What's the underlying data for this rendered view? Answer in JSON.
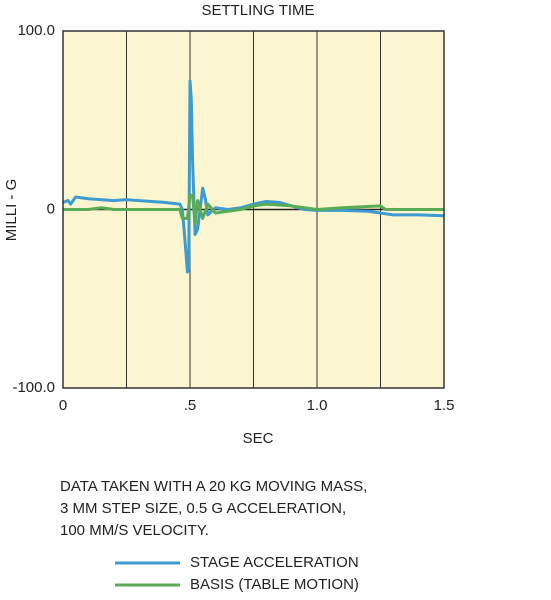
{
  "chart_data": {
    "type": "line",
    "title": "SETTLING TIME",
    "x_label": "SEC",
    "y_label": "MILLI - G",
    "xlim": [
      0,
      1.5
    ],
    "ylim": [
      -100,
      100
    ],
    "xticks": [
      0,
      {
        "value": 0.5,
        "label": ".5"
      },
      {
        "value": 1,
        "label": "1.0"
      },
      1.5
    ],
    "xgrid": [
      0.25,
      0.5,
      0.75,
      1,
      1.25
    ],
    "yticks": [
      {
        "value": 100,
        "label": "100.0"
      },
      0,
      {
        "value": -100,
        "label": "-100.0"
      }
    ],
    "zero_line": true,
    "plot_background": "#fbf6cf",
    "note": [
      "DATA TAKEN WITH A 20 KG MOVING MASS,",
      "3 MM STEP SIZE, 0.5 G ACCELERATION,",
      "100 MM/S VELOCITY."
    ],
    "series": [
      {
        "name": "STAGE ACCELERATION",
        "color": "#3d9bd0",
        "x": [
          0,
          0.02,
          0.03,
          0.05,
          0.1,
          0.2,
          0.25,
          0.3,
          0.4,
          0.46,
          0.47,
          0.48,
          0.49,
          0.495,
          0.5,
          0.505,
          0.51,
          0.52,
          0.53,
          0.55,
          0.56,
          0.57,
          0.6,
          0.65,
          0.7,
          0.75,
          0.8,
          0.85,
          0.9,
          0.95,
          1.0,
          1.1,
          1.2,
          1.25,
          1.3,
          1.4,
          1.5
        ],
        "values": [
          4,
          5,
          3,
          7,
          6,
          5,
          5.5,
          5,
          4,
          3,
          0,
          -17,
          -35,
          -33,
          72,
          62,
          28,
          -14,
          -11,
          12,
          6,
          -3,
          1,
          0,
          1,
          3,
          4.5,
          4,
          2,
          0,
          -0.5,
          -0.5,
          -1,
          -2,
          -3,
          -3,
          -3.5
        ]
      },
      {
        "name": "BASIS (TABLE MOTION)",
        "color": "#5aab55",
        "x": [
          0,
          0.1,
          0.15,
          0.2,
          0.3,
          0.46,
          0.47,
          0.49,
          0.5,
          0.51,
          0.52,
          0.53,
          0.55,
          0.57,
          0.6,
          0.65,
          0.7,
          0.75,
          0.8,
          0.9,
          1.0,
          1.1,
          1.25,
          1.27,
          1.5
        ],
        "values": [
          0,
          0,
          1,
          0,
          0,
          0,
          -5,
          -5,
          8,
          8,
          -8,
          5,
          -5,
          3,
          -2,
          -1,
          0,
          2,
          3,
          2,
          0,
          1,
          2,
          0,
          0
        ]
      }
    ]
  }
}
